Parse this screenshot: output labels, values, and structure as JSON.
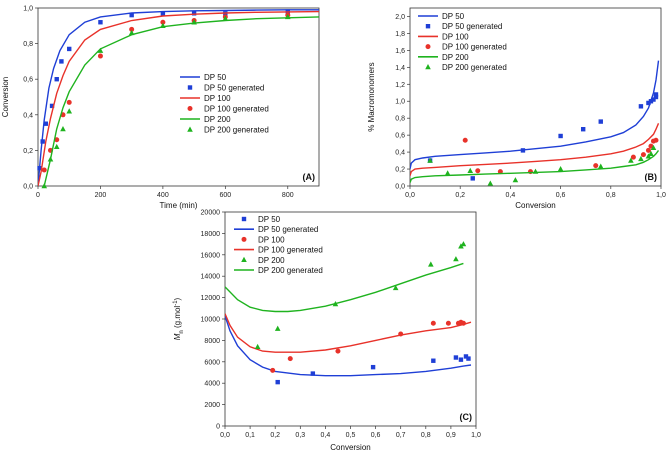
{
  "colors": {
    "dp50": "#1f3fd6",
    "dp100": "#e8322a",
    "dp200": "#1fb31f"
  },
  "chart_data": [
    {
      "id": "A",
      "type": "line",
      "title": "",
      "panel_label": "(A)",
      "xlabel": "Time (min)",
      "ylabel": "Conversion",
      "xlim": [
        0,
        900
      ],
      "ylim": [
        0,
        1.0
      ],
      "xticks": [
        "0",
        "200",
        "400",
        "600",
        "800"
      ],
      "yticks": [
        "0,0",
        "0,2",
        "0,4",
        "0,6",
        "0,8",
        "1,0"
      ],
      "xtick_values": [
        0,
        200,
        400,
        600,
        800
      ],
      "ytick_values": [
        0,
        0.2,
        0.4,
        0.6,
        0.8,
        1.0
      ],
      "legend": [
        "DP 50",
        "DP 50 generated",
        "DP 100",
        "DP 100 generated",
        "DP 200",
        "DP 200 generated"
      ],
      "legend_location": "center-right",
      "series": [
        {
          "name": "DP 50",
          "kind": "line",
          "color": "dp50",
          "x": [
            0,
            10,
            20,
            35,
            50,
            70,
            100,
            150,
            200,
            300,
            400,
            500,
            600,
            700,
            800,
            900
          ],
          "y": [
            0.0,
            0.2,
            0.37,
            0.55,
            0.66,
            0.76,
            0.85,
            0.92,
            0.95,
            0.972,
            0.98,
            0.984,
            0.986,
            0.988,
            0.99,
            0.99
          ]
        },
        {
          "name": "DP 50 generated",
          "kind": "marker",
          "marker": "square",
          "color": "dp50",
          "x": [
            5,
            15,
            25,
            45,
            60,
            75,
            100,
            200,
            300,
            400,
            500,
            600,
            800
          ],
          "y": [
            0.1,
            0.25,
            0.35,
            0.45,
            0.6,
            0.7,
            0.77,
            0.92,
            0.96,
            0.97,
            0.97,
            0.97,
            0.98
          ]
        },
        {
          "name": "DP 100",
          "kind": "line",
          "color": "dp100",
          "x": [
            0,
            10,
            25,
            40,
            60,
            80,
            100,
            150,
            200,
            300,
            400,
            500,
            600,
            700,
            800,
            900
          ],
          "y": [
            0.0,
            0.08,
            0.25,
            0.38,
            0.52,
            0.62,
            0.7,
            0.82,
            0.88,
            0.93,
            0.955,
            0.965,
            0.972,
            0.976,
            0.978,
            0.98
          ]
        },
        {
          "name": "DP 100 generated",
          "kind": "marker",
          "marker": "circle",
          "color": "dp100",
          "x": [
            20,
            40,
            60,
            80,
            100,
            200,
            300,
            400,
            500,
            600,
            800
          ],
          "y": [
            0.09,
            0.2,
            0.26,
            0.4,
            0.47,
            0.73,
            0.88,
            0.92,
            0.93,
            0.95,
            0.96
          ]
        },
        {
          "name": "DP 200",
          "kind": "line",
          "color": "dp200",
          "x": [
            20,
            40,
            60,
            80,
            100,
            150,
            200,
            300,
            400,
            500,
            600,
            700,
            800,
            900
          ],
          "y": [
            0.0,
            0.15,
            0.32,
            0.44,
            0.53,
            0.68,
            0.77,
            0.85,
            0.895,
            0.915,
            0.93,
            0.94,
            0.945,
            0.95
          ]
        },
        {
          "name": "DP 200 generated",
          "kind": "marker",
          "marker": "triangle",
          "color": "dp200",
          "x": [
            20,
            40,
            60,
            80,
            100,
            200,
            300,
            400,
            500,
            600,
            800
          ],
          "y": [
            0.0,
            0.15,
            0.22,
            0.32,
            0.42,
            0.76,
            0.86,
            0.9,
            0.92,
            0.94,
            0.95
          ]
        }
      ]
    },
    {
      "id": "B",
      "type": "line",
      "title": "",
      "panel_label": "(B)",
      "xlabel": "Conversion",
      "ylabel": "% Macromonomers",
      "xlim": [
        0,
        1.0
      ],
      "ylim": [
        0,
        2.1
      ],
      "xticks": [
        "0,0",
        "0,2",
        "0,4",
        "0,6",
        "0,8",
        "1,0"
      ],
      "yticks": [
        "0,0",
        "0,2",
        "0,4",
        "0,6",
        "0,8",
        "1,0",
        "1,2",
        "1,4",
        "1,6",
        "1,8",
        "2,0"
      ],
      "xtick_values": [
        0,
        0.2,
        0.4,
        0.6,
        0.8,
        1.0
      ],
      "ytick_values": [
        0,
        0.2,
        0.4,
        0.6,
        0.8,
        1.0,
        1.2,
        1.4,
        1.6,
        1.8,
        2.0
      ],
      "legend": [
        "DP 50",
        "DP 50 generated",
        "DP 100",
        "DP 100 generated",
        "DP 200",
        "DP 200 generated"
      ],
      "legend_location": "top-left",
      "series": [
        {
          "name": "DP 50",
          "kind": "line",
          "color": "dp50",
          "x": [
            0.0,
            0.005,
            0.02,
            0.05,
            0.1,
            0.2,
            0.3,
            0.4,
            0.5,
            0.6,
            0.7,
            0.8,
            0.85,
            0.9,
            0.93,
            0.95,
            0.97,
            0.98,
            0.99
          ],
          "y": [
            0.2,
            0.27,
            0.31,
            0.33,
            0.35,
            0.37,
            0.39,
            0.41,
            0.44,
            0.47,
            0.52,
            0.58,
            0.63,
            0.72,
            0.82,
            0.92,
            1.1,
            1.25,
            1.48
          ]
        },
        {
          "name": "DP 50 generated",
          "kind": "marker",
          "marker": "square",
          "color": "dp50",
          "x": [
            0.08,
            0.25,
            0.45,
            0.6,
            0.69,
            0.76,
            0.92,
            0.95,
            0.96,
            0.97,
            0.98,
            0.98
          ],
          "y": [
            0.3,
            0.09,
            0.42,
            0.59,
            0.67,
            0.76,
            0.94,
            0.98,
            1.0,
            1.02,
            1.05,
            1.08
          ]
        },
        {
          "name": "DP 100",
          "kind": "line",
          "color": "dp100",
          "x": [
            0.0,
            0.005,
            0.02,
            0.05,
            0.1,
            0.2,
            0.3,
            0.4,
            0.5,
            0.6,
            0.7,
            0.8,
            0.85,
            0.9,
            0.93,
            0.95,
            0.97,
            0.98,
            0.99
          ],
          "y": [
            0.12,
            0.17,
            0.2,
            0.21,
            0.22,
            0.24,
            0.255,
            0.27,
            0.29,
            0.31,
            0.34,
            0.38,
            0.41,
            0.46,
            0.5,
            0.55,
            0.61,
            0.67,
            0.74
          ]
        },
        {
          "name": "DP 100 generated",
          "kind": "marker",
          "marker": "circle",
          "color": "dp100",
          "x": [
            0.22,
            0.27,
            0.36,
            0.48,
            0.74,
            0.89,
            0.93,
            0.95,
            0.96,
            0.97,
            0.98
          ],
          "y": [
            0.54,
            0.18,
            0.17,
            0.17,
            0.24,
            0.34,
            0.37,
            0.42,
            0.47,
            0.53,
            0.54
          ]
        },
        {
          "name": "DP 200",
          "kind": "line",
          "color": "dp200",
          "x": [
            0.0,
            0.005,
            0.02,
            0.05,
            0.1,
            0.2,
            0.3,
            0.4,
            0.5,
            0.6,
            0.7,
            0.8,
            0.85,
            0.9,
            0.93,
            0.95,
            0.97,
            0.98,
            0.99
          ],
          "y": [
            0.04,
            0.08,
            0.1,
            0.11,
            0.12,
            0.13,
            0.14,
            0.15,
            0.16,
            0.17,
            0.19,
            0.21,
            0.23,
            0.25,
            0.28,
            0.31,
            0.35,
            0.38,
            0.42
          ]
        },
        {
          "name": "DP 200 generated",
          "kind": "marker",
          "marker": "triangle",
          "color": "dp200",
          "x": [
            0.08,
            0.15,
            0.24,
            0.32,
            0.42,
            0.5,
            0.6,
            0.76,
            0.88,
            0.92,
            0.95,
            0.96,
            0.97
          ],
          "y": [
            0.3,
            0.15,
            0.18,
            0.03,
            0.07,
            0.17,
            0.2,
            0.23,
            0.3,
            0.32,
            0.35,
            0.38,
            0.45
          ]
        }
      ]
    },
    {
      "id": "C",
      "type": "line",
      "title": "",
      "panel_label": "(C)",
      "xlabel": "Conversion",
      "ylabel_main": "M",
      "ylabel_sub": "n",
      "ylabel_rest": " (g.mol",
      "ylabel_sup": "-1",
      "ylabel_end": ")",
      "xlim": [
        0,
        1.0
      ],
      "ylim": [
        0,
        20000
      ],
      "xticks": [
        "0,0",
        "0,1",
        "0,2",
        "0,3",
        "0,4",
        "0,5",
        "0,6",
        "0,7",
        "0,8",
        "0,9",
        "1,0"
      ],
      "yticks": [
        "0",
        "2000",
        "4000",
        "6000",
        "8000",
        "10000",
        "12000",
        "14000",
        "16000",
        "18000",
        "20000"
      ],
      "xtick_values": [
        0,
        0.1,
        0.2,
        0.3,
        0.4,
        0.5,
        0.6,
        0.7,
        0.8,
        0.9,
        1.0
      ],
      "ytick_values": [
        0,
        2000,
        4000,
        6000,
        8000,
        10000,
        12000,
        14000,
        16000,
        18000,
        20000
      ],
      "legend": [
        "DP 50",
        "DP 50 generated",
        "DP 100",
        "DP 100 generated",
        "DP 200",
        "DP 200 generated"
      ],
      "legend_location": "top-left",
      "series": [
        {
          "name": "DP 50",
          "kind": "marker",
          "marker": "square",
          "color": "dp50",
          "x": [
            0.21,
            0.35,
            0.59,
            0.83,
            0.92,
            0.94,
            0.96,
            0.97
          ],
          "y": [
            4100,
            4900,
            5500,
            6100,
            6400,
            6200,
            6500,
            6300
          ]
        },
        {
          "name": "DP 50 generated",
          "kind": "line",
          "color": "dp50",
          "x": [
            0.0,
            0.02,
            0.05,
            0.1,
            0.15,
            0.2,
            0.3,
            0.4,
            0.5,
            0.6,
            0.7,
            0.8,
            0.9,
            0.95,
            0.98
          ],
          "y": [
            10300,
            8900,
            7500,
            6200,
            5500,
            5100,
            4800,
            4700,
            4700,
            4800,
            4900,
            5100,
            5400,
            5600,
            5700
          ]
        },
        {
          "name": "DP 100",
          "kind": "marker",
          "marker": "circle",
          "color": "dp100",
          "x": [
            0.19,
            0.26,
            0.45,
            0.7,
            0.83,
            0.89,
            0.93,
            0.94,
            0.95
          ],
          "y": [
            5200,
            6300,
            7000,
            8600,
            9600,
            9600,
            9600,
            9700,
            9600
          ]
        },
        {
          "name": "DP 100 generated",
          "kind": "line",
          "color": "dp100",
          "x": [
            0.0,
            0.02,
            0.05,
            0.1,
            0.15,
            0.2,
            0.3,
            0.4,
            0.5,
            0.6,
            0.7,
            0.8,
            0.9,
            0.95,
            0.98
          ],
          "y": [
            10500,
            9400,
            8300,
            7400,
            7000,
            6900,
            6900,
            7100,
            7500,
            8000,
            8500,
            8900,
            9200,
            9500,
            9700
          ]
        },
        {
          "name": "DP 200",
          "kind": "marker",
          "marker": "triangle",
          "color": "dp200",
          "x": [
            0.13,
            0.21,
            0.44,
            0.68,
            0.82,
            0.92,
            0.94,
            0.95
          ],
          "y": [
            7400,
            9100,
            11400,
            12900,
            15100,
            15600,
            16800,
            17000
          ]
        },
        {
          "name": "DP 200 generated",
          "kind": "line",
          "color": "dp200",
          "x": [
            0.0,
            0.05,
            0.1,
            0.15,
            0.2,
            0.25,
            0.3,
            0.4,
            0.5,
            0.6,
            0.7,
            0.8,
            0.9,
            0.95
          ],
          "y": [
            13000,
            11800,
            11100,
            10800,
            10700,
            10700,
            10800,
            11200,
            11800,
            12500,
            13300,
            14100,
            14800,
            15200
          ]
        }
      ]
    }
  ]
}
